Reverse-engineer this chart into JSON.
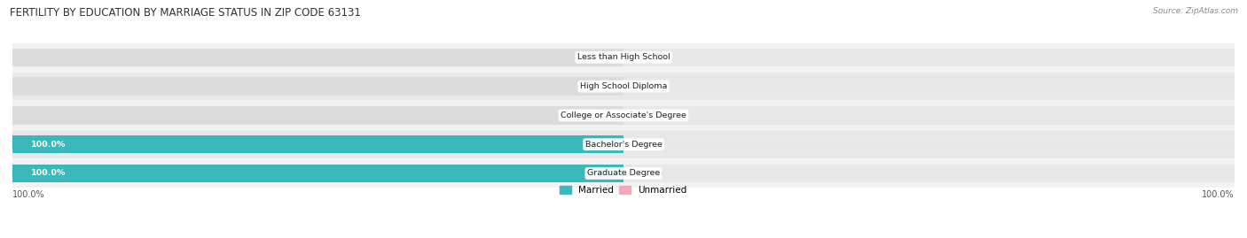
{
  "title": "FERTILITY BY EDUCATION BY MARRIAGE STATUS IN ZIP CODE 63131",
  "source": "Source: ZipAtlas.com",
  "categories": [
    "Less than High School",
    "High School Diploma",
    "College or Associate's Degree",
    "Bachelor's Degree",
    "Graduate Degree"
  ],
  "married": [
    0.0,
    0.0,
    0.0,
    100.0,
    100.0
  ],
  "unmarried": [
    0.0,
    0.0,
    0.0,
    0.0,
    0.0
  ],
  "married_color": "#3ab8ba",
  "unmarried_color": "#f5a8bc",
  "bar_bg_left_color": "#dcdcdc",
  "bar_bg_right_color": "#e8e8e8",
  "row_colors": [
    "#f2f2f2",
    "#e9e9e9",
    "#f2f2f2",
    "#e9e9e9",
    "#f2f2f2"
  ],
  "legend_married": "Married",
  "legend_unmarried": "Unmarried",
  "x_left_label": "100.0%",
  "x_right_label": "100.0%",
  "value_color_on_bar": "#ffffff",
  "value_color_off_bar": "#555555"
}
